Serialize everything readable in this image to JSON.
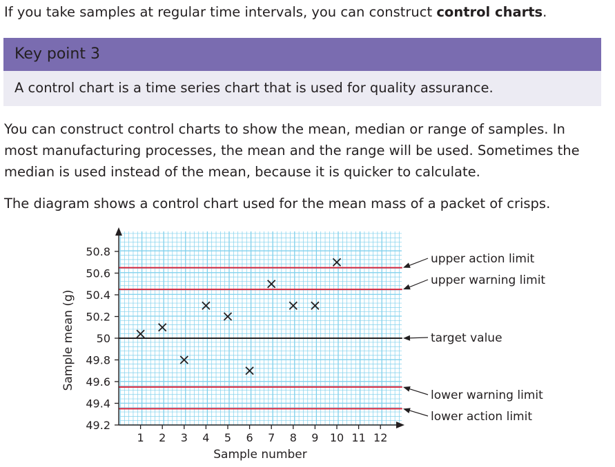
{
  "intro": {
    "text_before": "If you take samples at regular time intervals, you can construct ",
    "bold": "control charts",
    "text_after": "."
  },
  "key_point": {
    "title": "Key point 3",
    "text": "A control chart is a time series chart that is used for quality assurance.",
    "header_color": "#7a6cb0",
    "body_color": "#ecebf3"
  },
  "paragraph1": {
    "lines": [
      "You can construct control charts to show the mean, median or range of samples. In",
      "most manufacturing processes, the mean and the range will be used. Sometimes the",
      "median is used instead of the mean, because it is quicker to calculate."
    ]
  },
  "paragraph2": "The diagram shows a control chart used for the mean mass of a packet of crisps.",
  "chart_data": {
    "type": "scatter",
    "marker": "cross",
    "xlabel": "Sample number",
    "ylabel": "Sample mean (g)",
    "x_ticks": [
      1,
      2,
      3,
      4,
      5,
      6,
      7,
      8,
      9,
      10,
      11,
      12
    ],
    "y_ticks": [
      "50.8",
      "50.6",
      "50.4",
      "50.2",
      "50",
      "49.8",
      "49.6",
      "49.4",
      "49.2"
    ],
    "xlim": [
      0,
      13
    ],
    "ylim": [
      49.2,
      50.95
    ],
    "grid": true,
    "grid_color": "#7fd0ec",
    "points": [
      {
        "x": 1,
        "y": 50.04
      },
      {
        "x": 2,
        "y": 50.1
      },
      {
        "x": 3,
        "y": 49.8
      },
      {
        "x": 4,
        "y": 50.3
      },
      {
        "x": 5,
        "y": 50.2
      },
      {
        "x": 6,
        "y": 49.7
      },
      {
        "x": 7,
        "y": 50.5
      },
      {
        "x": 8,
        "y": 50.3
      },
      {
        "x": 9,
        "y": 50.3
      },
      {
        "x": 10,
        "y": 50.7
      }
    ],
    "limit_lines": [
      {
        "label": "upper action limit",
        "y": 50.65,
        "color": "#d7263d"
      },
      {
        "label": "upper warning limit",
        "y": 50.45,
        "color": "#d7263d"
      },
      {
        "label": "target value",
        "y": 50.0,
        "color": "#231f20"
      },
      {
        "label": "lower warning limit",
        "y": 49.55,
        "color": "#d7263d"
      },
      {
        "label": "lower action limit",
        "y": 49.35,
        "color": "#d7263d"
      }
    ]
  }
}
